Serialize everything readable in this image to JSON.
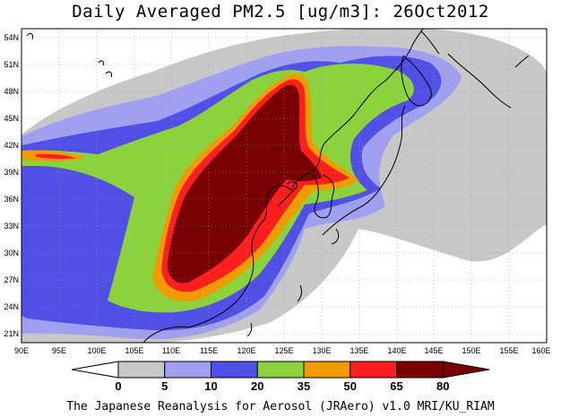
{
  "title": "Daily Averaged PM2.5 [ug/m3]: 26Oct2012",
  "credit": "The Japanese Reanalysis for Aerosol (JRAero) v1.0 MRI/KU_RIAM",
  "map": {
    "lon_range": [
      90,
      160
    ],
    "lat_range": [
      20,
      55
    ],
    "lon_ticks": [
      "90E",
      "95E",
      "100E",
      "105E",
      "110E",
      "115E",
      "120E",
      "125E",
      "130E",
      "135E",
      "140E",
      "145E",
      "150E",
      "155E",
      "160E"
    ],
    "lat_ticks": [
      "54N",
      "51N",
      "48N",
      "45N",
      "42N",
      "39N",
      "36N",
      "33N",
      "30N",
      "27N",
      "24N",
      "21N"
    ],
    "grid": "dotted",
    "variable": "PM2.5 daily mean concentration",
    "date": "26Oct2012"
  },
  "colorbar": {
    "labels": [
      "0",
      "5",
      "10",
      "20",
      "35",
      "50",
      "65",
      "80"
    ],
    "colors": [
      "#ffffff",
      "#c8c8c8",
      "#a0a0f0",
      "#5050e6",
      "#8cd23c",
      "#f09b00",
      "#ff1e1e",
      "#780000"
    ]
  }
}
